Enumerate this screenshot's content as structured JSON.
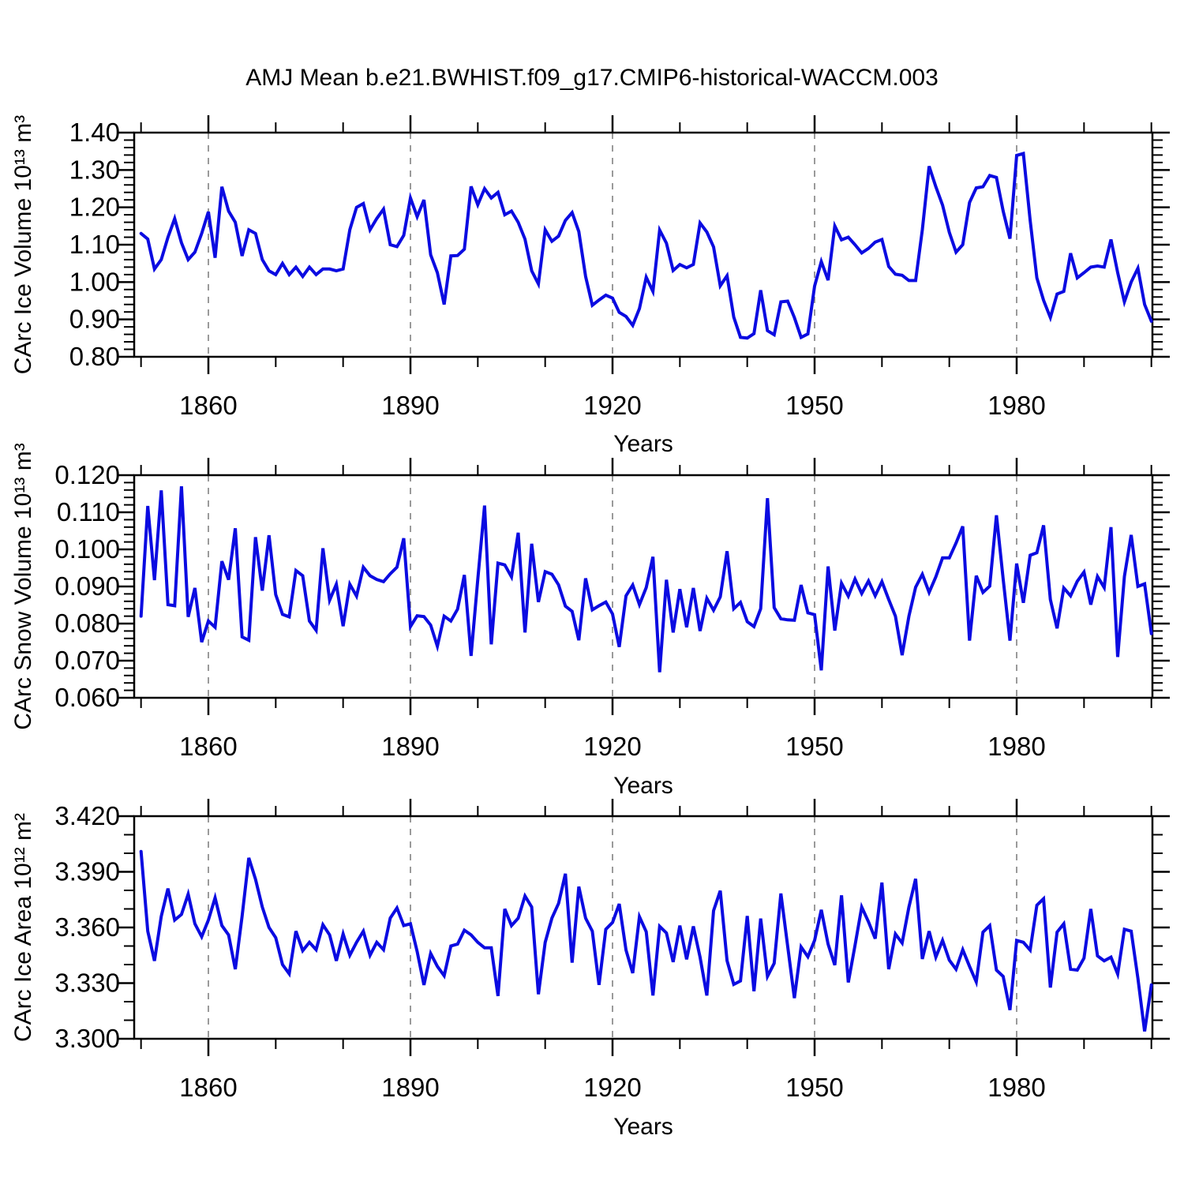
{
  "page": {
    "title": "AMJ Mean b.e21.BWHIST.f09_g17.CMIP6-historical-WACCM.003",
    "background": "#ffffff",
    "accent_line_color": "#0b0be1"
  },
  "chart_data": [
    {
      "type": "line",
      "series_name": "CArc Ice Volume",
      "ylabel": "CArc Ice Volume 10¹³ m³",
      "xlabel": "Years",
      "line_color": "#0b0be1",
      "grid": "vertical-dashed-at-major-xticks",
      "legend": "none",
      "x_start": 1850,
      "x_step": 1,
      "xlim": [
        1849,
        2000.3
      ],
      "xticks": [
        1860,
        1890,
        1920,
        1950,
        1980
      ],
      "xminor_step": 10,
      "ylim": [
        0.8,
        1.4
      ],
      "ytick_step": 0.1,
      "yminor_step": 0.02,
      "ytick_decimals": 2,
      "values": [
        1.13,
        1.115,
        1.035,
        1.06,
        1.12,
        1.17,
        1.105,
        1.06,
        1.08,
        1.13,
        1.188,
        1.065,
        1.255,
        1.19,
        1.16,
        1.07,
        1.14,
        1.13,
        1.06,
        1.03,
        1.02,
        1.05,
        1.02,
        1.04,
        1.015,
        1.04,
        1.02,
        1.035,
        1.035,
        1.03,
        1.035,
        1.14,
        1.2,
        1.21,
        1.14,
        1.17,
        1.195,
        1.1,
        1.095,
        1.125,
        1.225,
        1.175,
        1.22,
        1.073,
        1.025,
        0.94,
        1.07,
        1.071,
        1.088,
        1.256,
        1.207,
        1.25,
        1.225,
        1.24,
        1.18,
        1.19,
        1.16,
        1.115,
        1.03,
        0.995,
        1.14,
        1.109,
        1.123,
        1.165,
        1.186,
        1.135,
        1.015,
        0.938,
        0.952,
        0.965,
        0.957,
        0.919,
        0.908,
        0.884,
        0.929,
        1.013,
        0.975,
        1.139,
        1.104,
        1.031,
        1.047,
        1.038,
        1.047,
        1.158,
        1.134,
        1.094,
        0.99,
        1.017,
        0.906,
        0.852,
        0.85,
        0.862,
        0.978,
        0.87,
        0.859,
        0.947,
        0.949,
        0.905,
        0.852,
        0.861,
        0.989,
        1.055,
        1.005,
        1.15,
        1.113,
        1.12,
        1.1,
        1.078,
        1.09,
        1.107,
        1.114,
        1.042,
        1.021,
        1.018,
        1.004,
        1.004,
        1.14,
        1.31,
        1.255,
        1.206,
        1.133,
        1.08,
        1.1,
        1.213,
        1.252,
        1.255,
        1.285,
        1.28,
        1.19,
        1.116,
        1.339,
        1.344,
        1.165,
        1.011,
        0.951,
        0.905,
        0.968,
        0.975,
        1.077,
        1.011,
        1.025,
        1.04,
        1.043,
        1.04,
        1.114,
        1.025,
        0.947,
        1.0,
        1.037,
        0.94,
        0.895
      ]
    },
    {
      "type": "line",
      "series_name": "CArc Snow Volume",
      "ylabel": "CArc Snow Volume 10¹³ m³",
      "xlabel": "Years",
      "line_color": "#0b0be1",
      "grid": "vertical-dashed-at-major-xticks",
      "legend": "none",
      "x_start": 1850,
      "x_step": 1,
      "xlim": [
        1849,
        2000.3
      ],
      "xticks": [
        1860,
        1890,
        1920,
        1950,
        1980
      ],
      "xminor_step": 10,
      "ylim": [
        0.06,
        0.12
      ],
      "ytick_step": 0.01,
      "yminor_step": 0.002,
      "ytick_decimals": 3,
      "values": [
        0.082,
        0.1117,
        0.0917,
        0.1159,
        0.0851,
        0.0848,
        0.117,
        0.0818,
        0.0896,
        0.075,
        0.0807,
        0.079,
        0.0968,
        0.0918,
        0.1057,
        0.0764,
        0.0755,
        0.1033,
        0.0889,
        0.1038,
        0.0878,
        0.0825,
        0.0818,
        0.0943,
        0.0929,
        0.0807,
        0.0782,
        0.1003,
        0.0863,
        0.0906,
        0.0793,
        0.0906,
        0.0874,
        0.0952,
        0.0929,
        0.0919,
        0.0913,
        0.0934,
        0.0952,
        0.103,
        0.0792,
        0.0821,
        0.0819,
        0.0796,
        0.0739,
        0.082,
        0.0807,
        0.0839,
        0.0931,
        0.0713,
        0.0919,
        0.1118,
        0.0744,
        0.0963,
        0.0958,
        0.0926,
        0.1045,
        0.0776,
        0.1015,
        0.0858,
        0.094,
        0.0933,
        0.0904,
        0.0847,
        0.0833,
        0.0755,
        0.0922,
        0.0837,
        0.0848,
        0.0858,
        0.0826,
        0.0737,
        0.0875,
        0.0904,
        0.0851,
        0.0897,
        0.098,
        0.0669,
        0.0918,
        0.0776,
        0.0893,
        0.079,
        0.0896,
        0.078,
        0.0868,
        0.0836,
        0.0872,
        0.0995,
        0.084,
        0.0857,
        0.0805,
        0.0792,
        0.084,
        0.1138,
        0.0843,
        0.0813,
        0.081,
        0.0809,
        0.0904,
        0.0829,
        0.0824,
        0.0674,
        0.0954,
        0.0781,
        0.0909,
        0.0874,
        0.092,
        0.0881,
        0.0915,
        0.0875,
        0.0913,
        0.0865,
        0.082,
        0.0715,
        0.082,
        0.0898,
        0.0933,
        0.0884,
        0.0926,
        0.0977,
        0.0977,
        0.1017,
        0.1062,
        0.0754,
        0.0929,
        0.0884,
        0.0901,
        0.1092,
        0.092,
        0.0754,
        0.0962,
        0.0856,
        0.0984,
        0.0991,
        0.1065,
        0.0865,
        0.0787,
        0.0896,
        0.0875,
        0.0914,
        0.0939,
        0.0851,
        0.0927,
        0.0897,
        0.106,
        0.071,
        0.0927,
        0.1039,
        0.09,
        0.0907,
        0.0773
      ]
    },
    {
      "type": "line",
      "series_name": "CArc Ice Area",
      "ylabel": "CArc Ice Area 10¹² m²",
      "xlabel": "Years",
      "line_color": "#0b0be1",
      "grid": "vertical-dashed-at-major-xticks",
      "legend": "none",
      "x_start": 1850,
      "x_step": 1,
      "xlim": [
        1849,
        2000.3
      ],
      "xticks": [
        1860,
        1890,
        1920,
        1950,
        1980
      ],
      "xminor_step": 10,
      "ylim": [
        3.3,
        3.42
      ],
      "ytick_step": 0.03,
      "yminor_step": 0.01,
      "ytick_decimals": 3,
      "values": [
        3.401,
        3.358,
        3.342,
        3.366,
        3.381,
        3.364,
        3.367,
        3.378,
        3.362,
        3.355,
        3.364,
        3.376,
        3.361,
        3.356,
        3.3375,
        3.366,
        3.3975,
        3.386,
        3.371,
        3.36,
        3.3545,
        3.34,
        3.335,
        3.358,
        3.3475,
        3.352,
        3.348,
        3.3615,
        3.356,
        3.342,
        3.3565,
        3.345,
        3.352,
        3.358,
        3.345,
        3.352,
        3.348,
        3.365,
        3.3705,
        3.361,
        3.362,
        3.347,
        3.329,
        3.346,
        3.339,
        3.334,
        3.35,
        3.351,
        3.3585,
        3.356,
        3.352,
        3.349,
        3.349,
        3.323,
        3.37,
        3.361,
        3.365,
        3.377,
        3.371,
        3.324,
        3.352,
        3.365,
        3.373,
        3.389,
        3.341,
        3.382,
        3.365,
        3.358,
        3.329,
        3.359,
        3.3627,
        3.3727,
        3.3478,
        3.3354,
        3.3658,
        3.3577,
        3.3233,
        3.3606,
        3.357,
        3.3414,
        3.361,
        3.3428,
        3.3606,
        3.344,
        3.3233,
        3.369,
        3.3798,
        3.3421,
        3.3293,
        3.3312,
        3.3662,
        3.3256,
        3.3648,
        3.3336,
        3.3407,
        3.3783,
        3.3499,
        3.3219,
        3.3495,
        3.3442,
        3.353,
        3.3695,
        3.351,
        3.3397,
        3.3773,
        3.3304,
        3.3503,
        3.371,
        3.363,
        3.354,
        3.3842,
        3.3375,
        3.3565,
        3.3516,
        3.371,
        3.3862,
        3.343,
        3.358,
        3.344,
        3.353,
        3.3424,
        3.3375,
        3.348,
        3.339,
        3.3307,
        3.3575,
        3.361,
        3.337,
        3.3336,
        3.3155,
        3.353,
        3.352,
        3.3478,
        3.372,
        3.3755,
        3.3276,
        3.3575,
        3.362,
        3.3375,
        3.337,
        3.3435,
        3.37,
        3.3447,
        3.342,
        3.344,
        3.3349,
        3.359,
        3.358,
        3.3326,
        3.304,
        3.329
      ]
    }
  ]
}
